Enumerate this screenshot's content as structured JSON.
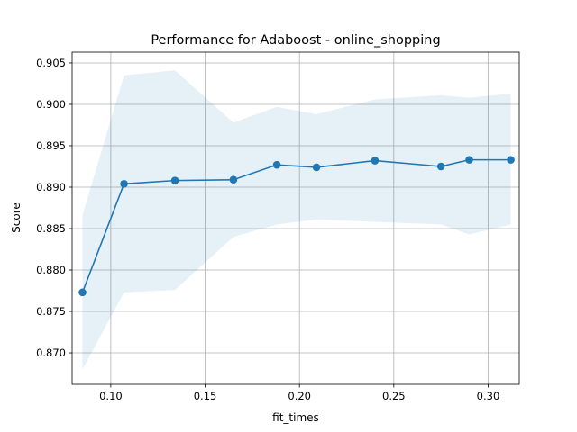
{
  "chart_data": {
    "type": "line",
    "title": "Performance for Adaboost - online_shopping",
    "xlabel": "fit_times",
    "ylabel": "Score",
    "xlim": [
      0.0795,
      0.3165
    ],
    "ylim": [
      0.8662,
      0.9063
    ],
    "xticks": [
      0.1,
      0.15,
      0.2,
      0.25,
      0.3
    ],
    "xtick_labels": [
      "0.10",
      "0.15",
      "0.20",
      "0.25",
      "0.30"
    ],
    "yticks": [
      0.87,
      0.875,
      0.88,
      0.885,
      0.89,
      0.895,
      0.9,
      0.905
    ],
    "ytick_labels": [
      "0.870",
      "0.875",
      "0.880",
      "0.885",
      "0.890",
      "0.895",
      "0.900",
      "0.905"
    ],
    "grid": true,
    "series": [
      {
        "color": "#1f77b4",
        "x": [
          0.085,
          0.107,
          0.134,
          0.165,
          0.188,
          0.209,
          0.24,
          0.275,
          0.29,
          0.312
        ],
        "y": [
          0.8773,
          0.8904,
          0.8908,
          0.8909,
          0.8927,
          0.8924,
          0.8932,
          0.8925,
          0.8933,
          0.8933
        ]
      }
    ],
    "band": {
      "color": "#1f77b4",
      "opacity": 0.11,
      "x": [
        0.085,
        0.107,
        0.134,
        0.165,
        0.188,
        0.209,
        0.24,
        0.275,
        0.29,
        0.312
      ],
      "upper": [
        0.8866,
        0.9035,
        0.9041,
        0.8978,
        0.8997,
        0.8988,
        0.9006,
        0.9011,
        0.9008,
        0.9013
      ],
      "lower": [
        0.868,
        0.8773,
        0.8776,
        0.884,
        0.8855,
        0.8861,
        0.8858,
        0.8855,
        0.8843,
        0.8855
      ]
    }
  }
}
